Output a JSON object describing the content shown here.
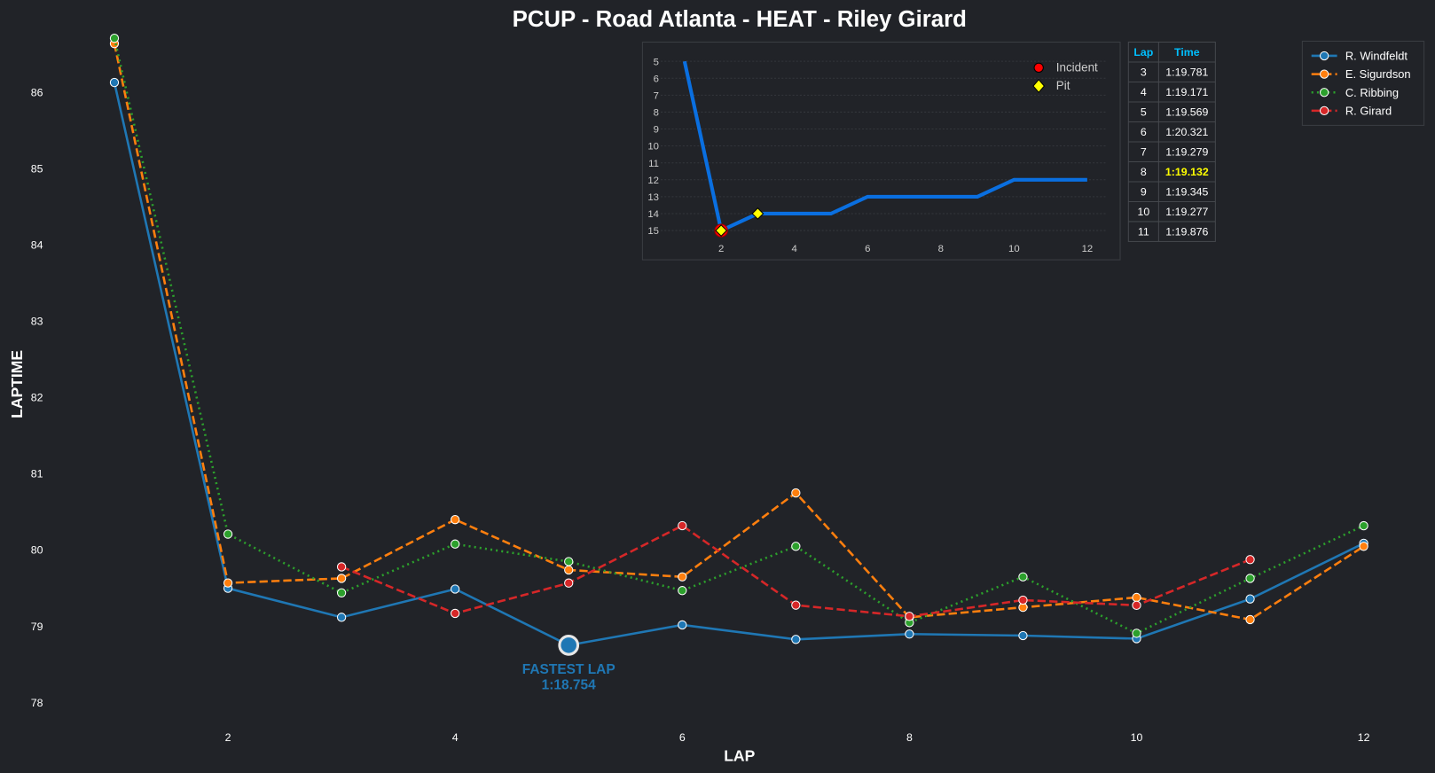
{
  "chart_data": [
    {
      "type": "line",
      "title": "PCUP - Road Atlanta - HEAT - Riley Girard",
      "xlabel": "LAP",
      "ylabel": "LAPTIME",
      "xlim": [
        0.85,
        12.4
      ],
      "ylim": [
        77.7,
        86.7
      ],
      "xticks": [
        2,
        4,
        6,
        8,
        10,
        12
      ],
      "yticks": [
        78,
        79,
        80,
        81,
        82,
        83,
        84,
        85,
        86
      ],
      "legend_position": "top-right",
      "series": [
        {
          "name": "R. Windfeldt",
          "color": "#1f77b4",
          "dash": "solid",
          "x": [
            1,
            2,
            3,
            4,
            5,
            6,
            7,
            8,
            9,
            10,
            11,
            12
          ],
          "values": [
            86.13,
            79.5,
            79.12,
            79.49,
            78.754,
            79.02,
            78.83,
            78.9,
            78.88,
            78.84,
            79.36,
            80.09
          ]
        },
        {
          "name": "E. Sigurdson",
          "color": "#ff7f0e",
          "dash": "dashed",
          "x": [
            1,
            2,
            3,
            4,
            5,
            6,
            7,
            8,
            9,
            10,
            11,
            12
          ],
          "values": [
            86.64,
            79.57,
            79.63,
            80.4,
            79.74,
            79.65,
            80.75,
            79.12,
            79.25,
            79.38,
            79.09,
            80.05
          ]
        },
        {
          "name": "C. Ribbing",
          "color": "#2ca02c",
          "dash": "dotted",
          "x": [
            1,
            2,
            3,
            4,
            5,
            6,
            7,
            8,
            9,
            10,
            11,
            12
          ],
          "values": [
            86.71,
            80.21,
            79.44,
            80.08,
            79.85,
            79.47,
            80.05,
            79.05,
            79.65,
            78.91,
            79.63,
            80.32
          ]
        },
        {
          "name": "R. Girard",
          "color": "#d62728",
          "dash": "dashed",
          "x": [
            3,
            4,
            5,
            6,
            7,
            8,
            9,
            10,
            11
          ],
          "values": [
            79.781,
            79.171,
            79.569,
            80.321,
            79.279,
            79.132,
            79.345,
            79.277,
            79.876
          ]
        }
      ],
      "annotation": {
        "label": "FASTEST LAP",
        "value": "1:18.754",
        "lap": 5,
        "laptime": 78.754,
        "color": "#1f77b4"
      }
    },
    {
      "type": "line",
      "title": "",
      "xticks": [
        2,
        4,
        6,
        8,
        10,
        12
      ],
      "yticks": [
        5,
        6,
        7,
        8,
        9,
        10,
        11,
        12,
        13,
        14,
        15
      ],
      "ylim": [
        15.9,
        4.6
      ],
      "xlim": [
        0.5,
        13
      ],
      "series": [
        {
          "name": "Position",
          "color": "#0a6fe0",
          "x": [
            1,
            2,
            3,
            4,
            5,
            6,
            7,
            8,
            9,
            10,
            11,
            12
          ],
          "values": [
            5,
            15,
            14,
            14,
            14,
            13,
            13,
            13,
            13,
            12,
            12,
            12
          ]
        }
      ],
      "markers": [
        {
          "label": "Incident",
          "color": "#ff0000",
          "shape": "circle",
          "points": [
            [
              2,
              15
            ]
          ]
        },
        {
          "label": "Pit",
          "color": "#ffff00",
          "shape": "diamond",
          "points": [
            [
              2,
              15
            ],
            [
              3,
              14
            ]
          ]
        }
      ],
      "legend_position": "top-right"
    },
    {
      "type": "table",
      "headers": [
        "Lap",
        "Time"
      ],
      "rows": [
        [
          "3",
          "1:19.781"
        ],
        [
          "4",
          "1:19.171"
        ],
        [
          "5",
          "1:19.569"
        ],
        [
          "6",
          "1:20.321"
        ],
        [
          "7",
          "1:19.279"
        ],
        [
          "8",
          "1:19.132"
        ],
        [
          "9",
          "1:19.345"
        ],
        [
          "10",
          "1:19.277"
        ],
        [
          "11",
          "1:19.876"
        ]
      ],
      "highlight_row": 5,
      "highlight_color": "#ffff00",
      "header_color": "#00bfff"
    }
  ]
}
